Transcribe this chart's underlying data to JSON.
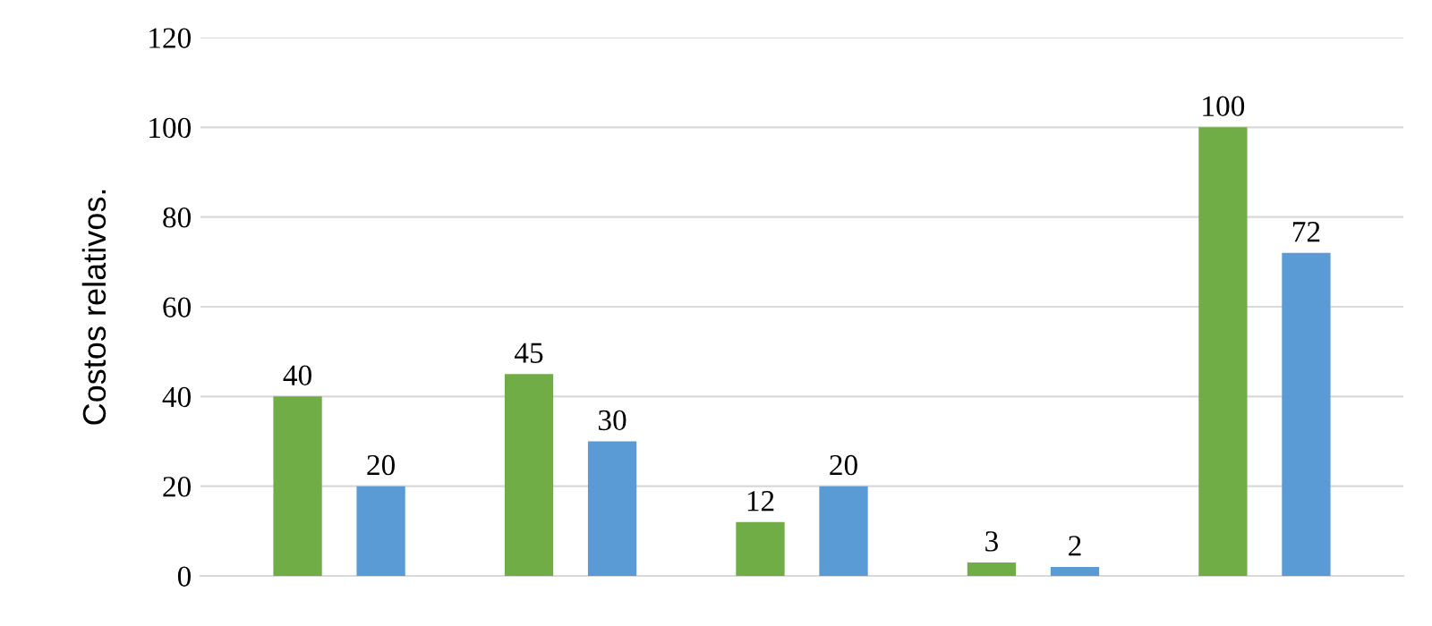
{
  "chart_data": {
    "type": "bar",
    "ylabel": "Costos relativos.",
    "categories": [
      null,
      null,
      null,
      null,
      null
    ],
    "series": [
      {
        "color": "#70ad47",
        "values": [
          40,
          45,
          12,
          3,
          100
        ]
      },
      {
        "color": "#5b9bd5",
        "values": [
          20,
          30,
          20,
          2,
          72
        ]
      }
    ],
    "ylim": [
      0,
      120
    ],
    "yticks": [
      0,
      20,
      40,
      60,
      80,
      100,
      120
    ],
    "grid": "y",
    "data_labels": true
  }
}
